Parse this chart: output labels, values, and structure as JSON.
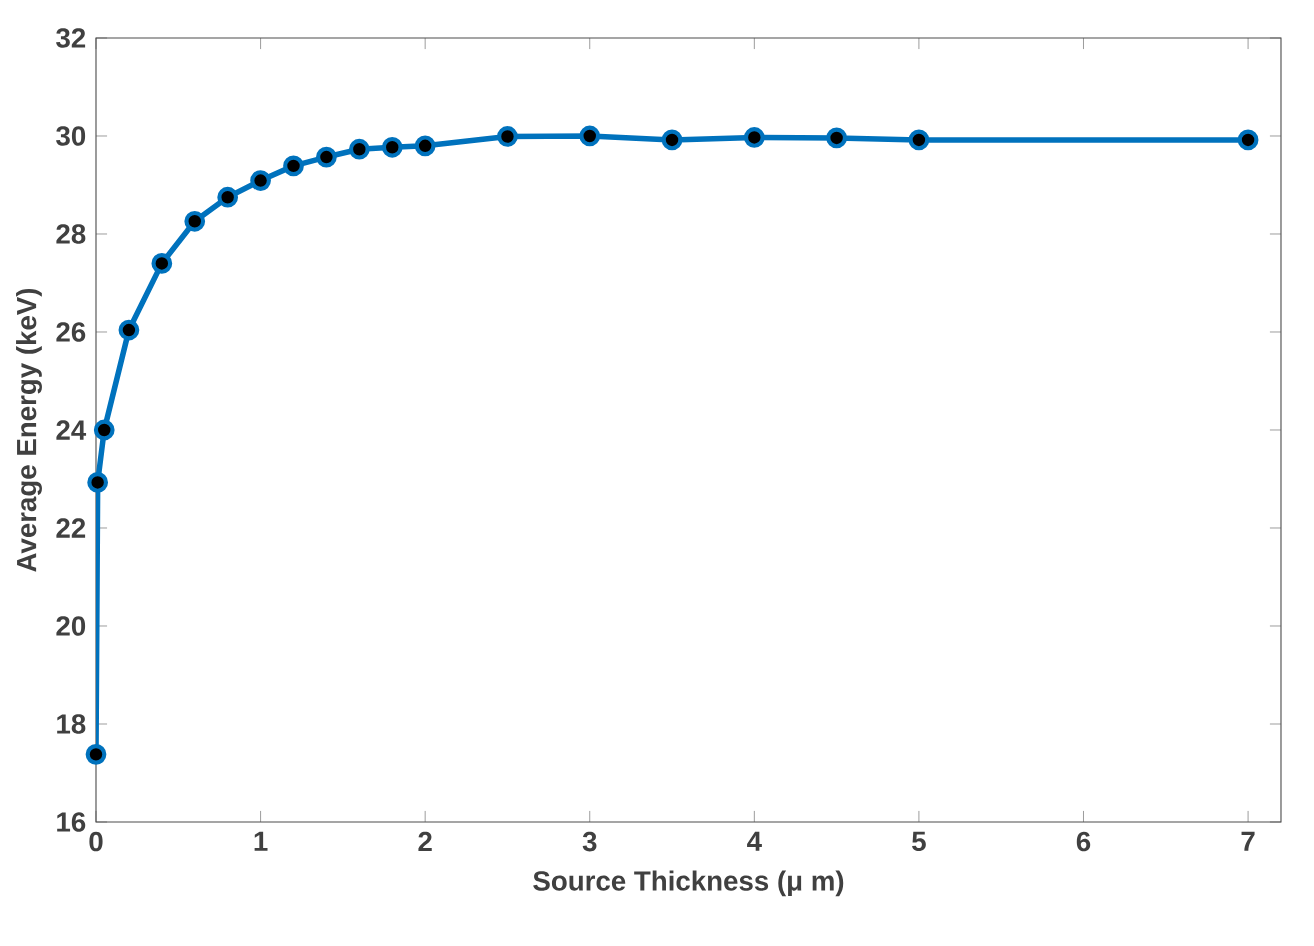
{
  "chart_data": {
    "type": "line",
    "xlabel": "Source Thickness (μ m)",
    "ylabel": "Average Energy (keV)",
    "x": [
      0,
      0.01,
      0.05,
      0.2,
      0.4,
      0.6,
      0.8,
      1.0,
      1.2,
      1.4,
      1.6,
      1.8,
      2.0,
      2.5,
      3.0,
      3.5,
      4.0,
      4.5,
      5.0,
      7.0
    ],
    "series": [
      {
        "color": "#0072bd",
        "values": [
          17.38,
          22.93,
          24.0,
          26.04,
          27.4,
          28.26,
          28.75,
          29.09,
          29.39,
          29.57,
          29.73,
          29.77,
          29.8,
          29.99,
          30.0,
          29.92,
          29.97,
          29.96,
          29.92,
          29.92
        ]
      }
    ],
    "xlim": [
      0,
      7.2
    ],
    "ylim": [
      16,
      32
    ],
    "xticks": [
      0,
      1,
      2,
      3,
      4,
      5,
      6,
      7
    ],
    "yticks": [
      16,
      18,
      20,
      22,
      24,
      26,
      28,
      30,
      32
    ],
    "marker": "circle",
    "line_style": "solid",
    "grid": false
  }
}
